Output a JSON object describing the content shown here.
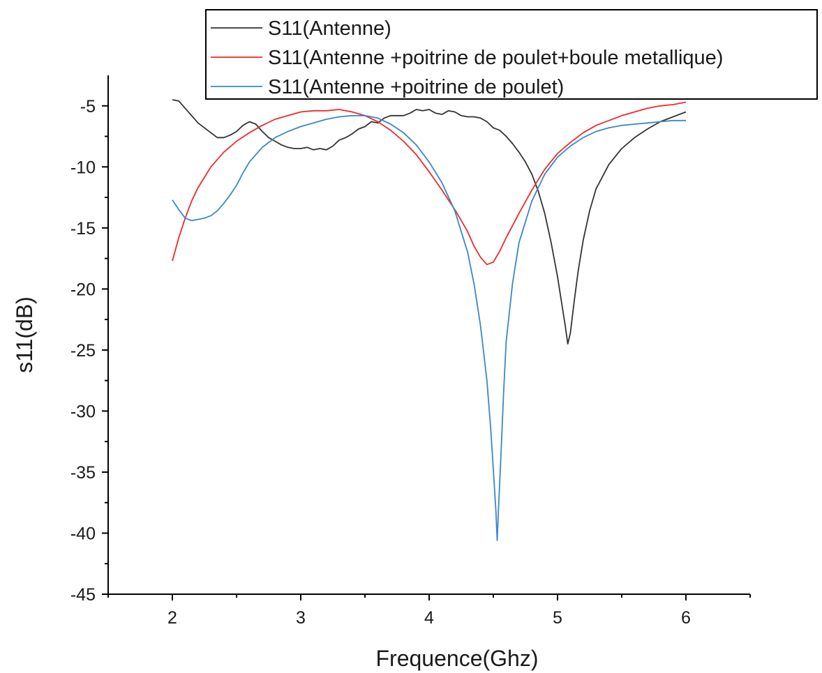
{
  "chart_data": {
    "type": "line",
    "title": "",
    "xlabel": "Frequence(Ghz)",
    "ylabel": "s11(dB)",
    "xlim": [
      1.5,
      6.5
    ],
    "ylim": [
      -45,
      -2.5
    ],
    "xticks": [
      2,
      3,
      4,
      5,
      6
    ],
    "xtick_labels": [
      "2",
      "3",
      "4",
      "5",
      "6"
    ],
    "yticks": [
      -5,
      -10,
      -15,
      -20,
      -25,
      -30,
      -35,
      -40,
      -45
    ],
    "ytick_labels": [
      "-5",
      "-10",
      "-15",
      "-20",
      "-25",
      "-30",
      "-35",
      "-40",
      "-45"
    ],
    "grid": false,
    "legend_position": "top-right",
    "series": [
      {
        "name": "S11(Antenne)",
        "color": "#333333",
        "x": [
          2.0,
          2.05,
          2.1,
          2.15,
          2.2,
          2.25,
          2.3,
          2.35,
          2.4,
          2.45,
          2.5,
          2.55,
          2.6,
          2.65,
          2.7,
          2.75,
          2.8,
          2.85,
          2.9,
          2.95,
          3.0,
          3.05,
          3.1,
          3.15,
          3.2,
          3.25,
          3.3,
          3.35,
          3.4,
          3.45,
          3.5,
          3.55,
          3.6,
          3.65,
          3.7,
          3.75,
          3.8,
          3.85,
          3.9,
          3.95,
          4.0,
          4.05,
          4.1,
          4.15,
          4.2,
          4.25,
          4.3,
          4.35,
          4.4,
          4.45,
          4.5,
          4.55,
          4.6,
          4.65,
          4.7,
          4.75,
          4.8,
          4.85,
          4.9,
          4.95,
          5.0,
          5.03,
          5.06,
          5.08,
          5.1,
          5.13,
          5.16,
          5.2,
          5.25,
          5.3,
          5.4,
          5.5,
          5.6,
          5.7,
          5.8,
          5.9,
          6.0
        ],
        "y": [
          -4.5,
          -4.6,
          -5.2,
          -5.8,
          -6.4,
          -6.8,
          -7.2,
          -7.6,
          -7.6,
          -7.4,
          -7.1,
          -6.6,
          -6.3,
          -6.5,
          -7.1,
          -7.6,
          -7.9,
          -8.2,
          -8.4,
          -8.5,
          -8.5,
          -8.4,
          -8.6,
          -8.5,
          -8.6,
          -8.3,
          -7.8,
          -7.6,
          -7.3,
          -6.9,
          -6.7,
          -6.3,
          -6.4,
          -6.0,
          -5.8,
          -5.8,
          -5.8,
          -5.6,
          -5.3,
          -5.4,
          -5.3,
          -5.6,
          -5.7,
          -5.4,
          -5.5,
          -5.8,
          -5.9,
          -5.9,
          -6.0,
          -6.3,
          -6.8,
          -7.0,
          -7.5,
          -8.1,
          -8.8,
          -9.6,
          -10.6,
          -12.0,
          -13.8,
          -16.2,
          -19.0,
          -21.0,
          -23.0,
          -24.5,
          -23.6,
          -21.0,
          -18.6,
          -16.0,
          -13.6,
          -11.8,
          -9.8,
          -8.5,
          -7.6,
          -6.9,
          -6.3,
          -5.9,
          -5.5
        ]
      },
      {
        "name": "S11(Antenne +poitrine de poulet+boule metallique)",
        "color": "#ee2a2a",
        "x": [
          2.0,
          2.05,
          2.1,
          2.15,
          2.2,
          2.3,
          2.4,
          2.5,
          2.6,
          2.7,
          2.8,
          2.9,
          3.0,
          3.1,
          3.2,
          3.3,
          3.4,
          3.5,
          3.6,
          3.7,
          3.8,
          3.9,
          4.0,
          4.1,
          4.2,
          4.3,
          4.35,
          4.4,
          4.45,
          4.5,
          4.55,
          4.6,
          4.7,
          4.8,
          4.9,
          5.0,
          5.1,
          5.2,
          5.3,
          5.4,
          5.5,
          5.6,
          5.7,
          5.8,
          5.9,
          6.0
        ],
        "y": [
          -17.7,
          -15.8,
          -14.2,
          -12.8,
          -11.7,
          -10.0,
          -8.8,
          -7.9,
          -7.2,
          -6.6,
          -6.1,
          -5.8,
          -5.5,
          -5.4,
          -5.4,
          -5.3,
          -5.5,
          -5.8,
          -6.3,
          -7.0,
          -7.9,
          -9.0,
          -10.4,
          -11.9,
          -13.5,
          -15.3,
          -16.5,
          -17.4,
          -18.0,
          -17.8,
          -16.9,
          -15.8,
          -13.8,
          -11.9,
          -10.2,
          -8.9,
          -8.0,
          -7.2,
          -6.6,
          -6.2,
          -5.8,
          -5.5,
          -5.2,
          -5.0,
          -4.9,
          -4.7
        ]
      },
      {
        "name": "S11(Antenne +poitrine de poulet)",
        "color": "#3a87c8",
        "x": [
          2.0,
          2.05,
          2.1,
          2.15,
          2.2,
          2.25,
          2.3,
          2.35,
          2.4,
          2.45,
          2.5,
          2.55,
          2.6,
          2.7,
          2.8,
          2.9,
          3.0,
          3.1,
          3.2,
          3.3,
          3.4,
          3.5,
          3.6,
          3.7,
          3.8,
          3.9,
          4.0,
          4.1,
          4.2,
          4.3,
          4.35,
          4.4,
          4.45,
          4.48,
          4.5,
          4.52,
          4.53,
          4.54,
          4.56,
          4.58,
          4.6,
          4.65,
          4.7,
          4.8,
          4.9,
          5.0,
          5.1,
          5.2,
          5.3,
          5.4,
          5.5,
          5.6,
          5.7,
          5.8,
          5.9,
          6.0
        ],
        "y": [
          -12.7,
          -13.5,
          -14.2,
          -14.4,
          -14.3,
          -14.2,
          -14.0,
          -13.6,
          -13.0,
          -12.3,
          -11.5,
          -10.5,
          -9.6,
          -8.4,
          -7.6,
          -7.1,
          -6.7,
          -6.4,
          -6.1,
          -5.9,
          -5.8,
          -5.8,
          -6.0,
          -6.5,
          -7.2,
          -8.2,
          -9.6,
          -11.3,
          -13.6,
          -17.0,
          -19.6,
          -23.0,
          -27.5,
          -31.5,
          -34.8,
          -38.2,
          -40.6,
          -38.0,
          -33.5,
          -28.5,
          -24.3,
          -19.5,
          -16.2,
          -12.8,
          -10.6,
          -9.2,
          -8.3,
          -7.6,
          -7.1,
          -6.8,
          -6.6,
          -6.5,
          -6.4,
          -6.3,
          -6.2,
          -6.2
        ]
      }
    ]
  }
}
